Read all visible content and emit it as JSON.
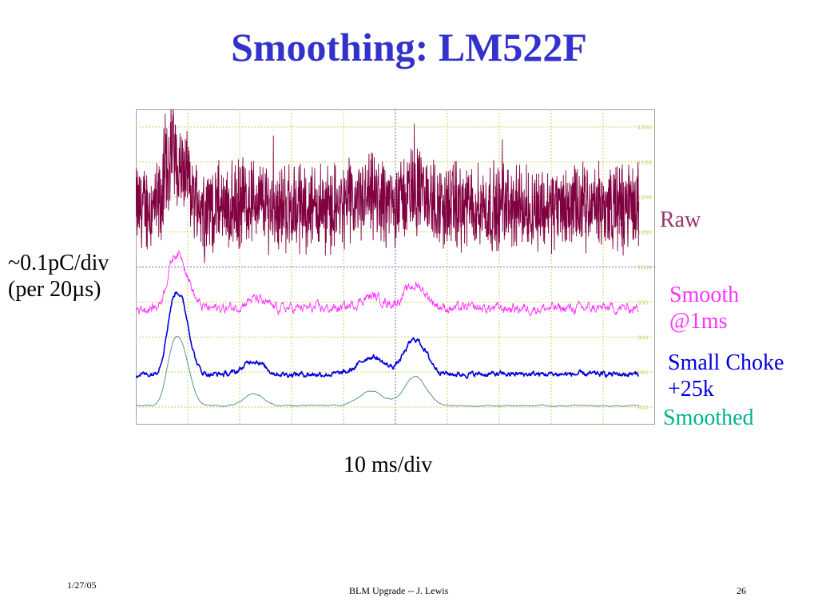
{
  "slide": {
    "title": "Smoothing: LM522F",
    "footer_date": "1/27/05",
    "footer_center": "BLM Upgrade -- J. Lewis",
    "page_number": "26"
  },
  "chart_data": {
    "type": "line",
    "title": "Smoothing: LM522F",
    "xlabel": "10 ms/div",
    "ylabel": [
      "~0.1pC/div",
      "(per 20µs)"
    ],
    "x_divisions": 10,
    "grid": true,
    "y_ticks": [
      "1200",
      "1150",
      "1100",
      "1050",
      "1000",
      "950",
      "900",
      "850",
      "800"
    ],
    "series": [
      {
        "name": "Raw",
        "color": "#800040",
        "baseline": 1085,
        "noise": 48,
        "spikes": true
      },
      {
        "name": [
          "Smooth",
          "@1ms"
        ],
        "color": "#ff33ff",
        "baseline": 941,
        "noise": 8
      },
      {
        "name": [
          "Small Choke",
          "+25k"
        ],
        "color": "#0000dd",
        "baseline": 847,
        "noise": 4
      },
      {
        "name": "Smoothed",
        "color": "#00b38a",
        "line_color": "#4a8a80",
        "baseline": 802,
        "noise": 1
      }
    ]
  }
}
